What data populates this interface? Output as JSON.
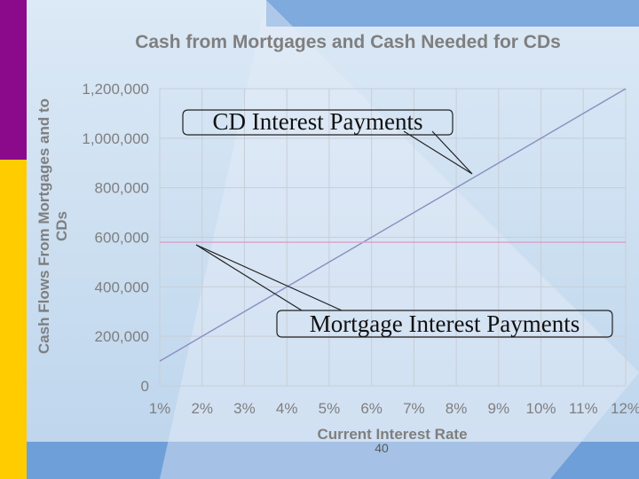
{
  "slide": {
    "page_number": "40",
    "colors": {
      "accent_purple": "#8b0a8b",
      "accent_yellow": "#ffcc00",
      "accent_blue": "#6f9fd8",
      "grid": "#c8ced6"
    }
  },
  "chart_data": {
    "type": "line",
    "title": "Cash from Mortgages and Cash Needed for CDs",
    "xlabel": "Current Interest Rate",
    "ylabel_lines": [
      "Cash Flows From Mortgages and to",
      "CDs"
    ],
    "categories": [
      "1%",
      "2%",
      "3%",
      "4%",
      "5%",
      "6%",
      "7%",
      "8%",
      "9%",
      "10%",
      "11%",
      "12%"
    ],
    "ylim": [
      0,
      1200000
    ],
    "y_ticks": [
      0,
      200000,
      400000,
      600000,
      800000,
      1000000,
      1200000
    ],
    "y_tick_labels": [
      "0",
      "200,000",
      "400,000",
      "600,000",
      "800,000",
      "1,000,000",
      "1,200,000"
    ],
    "grid": true,
    "series": [
      {
        "key": "cd",
        "color": "#8a8fc0",
        "values": [
          100000,
          200000,
          300000,
          400000,
          500000,
          600000,
          700000,
          800000,
          900000,
          1000000,
          1100000,
          1200000
        ]
      },
      {
        "key": "mortgage",
        "color": "#d7a0c8",
        "values": [
          580000,
          580000,
          580000,
          580000,
          580000,
          580000,
          580000,
          580000,
          580000,
          580000,
          580000,
          580000
        ]
      }
    ],
    "annotations": [
      {
        "text": "CD Interest Payments",
        "target_series": "cd",
        "target_index": 8
      },
      {
        "text": "Mortgage Interest Payments",
        "target_series": "mortgage",
        "target_index": 1
      }
    ]
  }
}
